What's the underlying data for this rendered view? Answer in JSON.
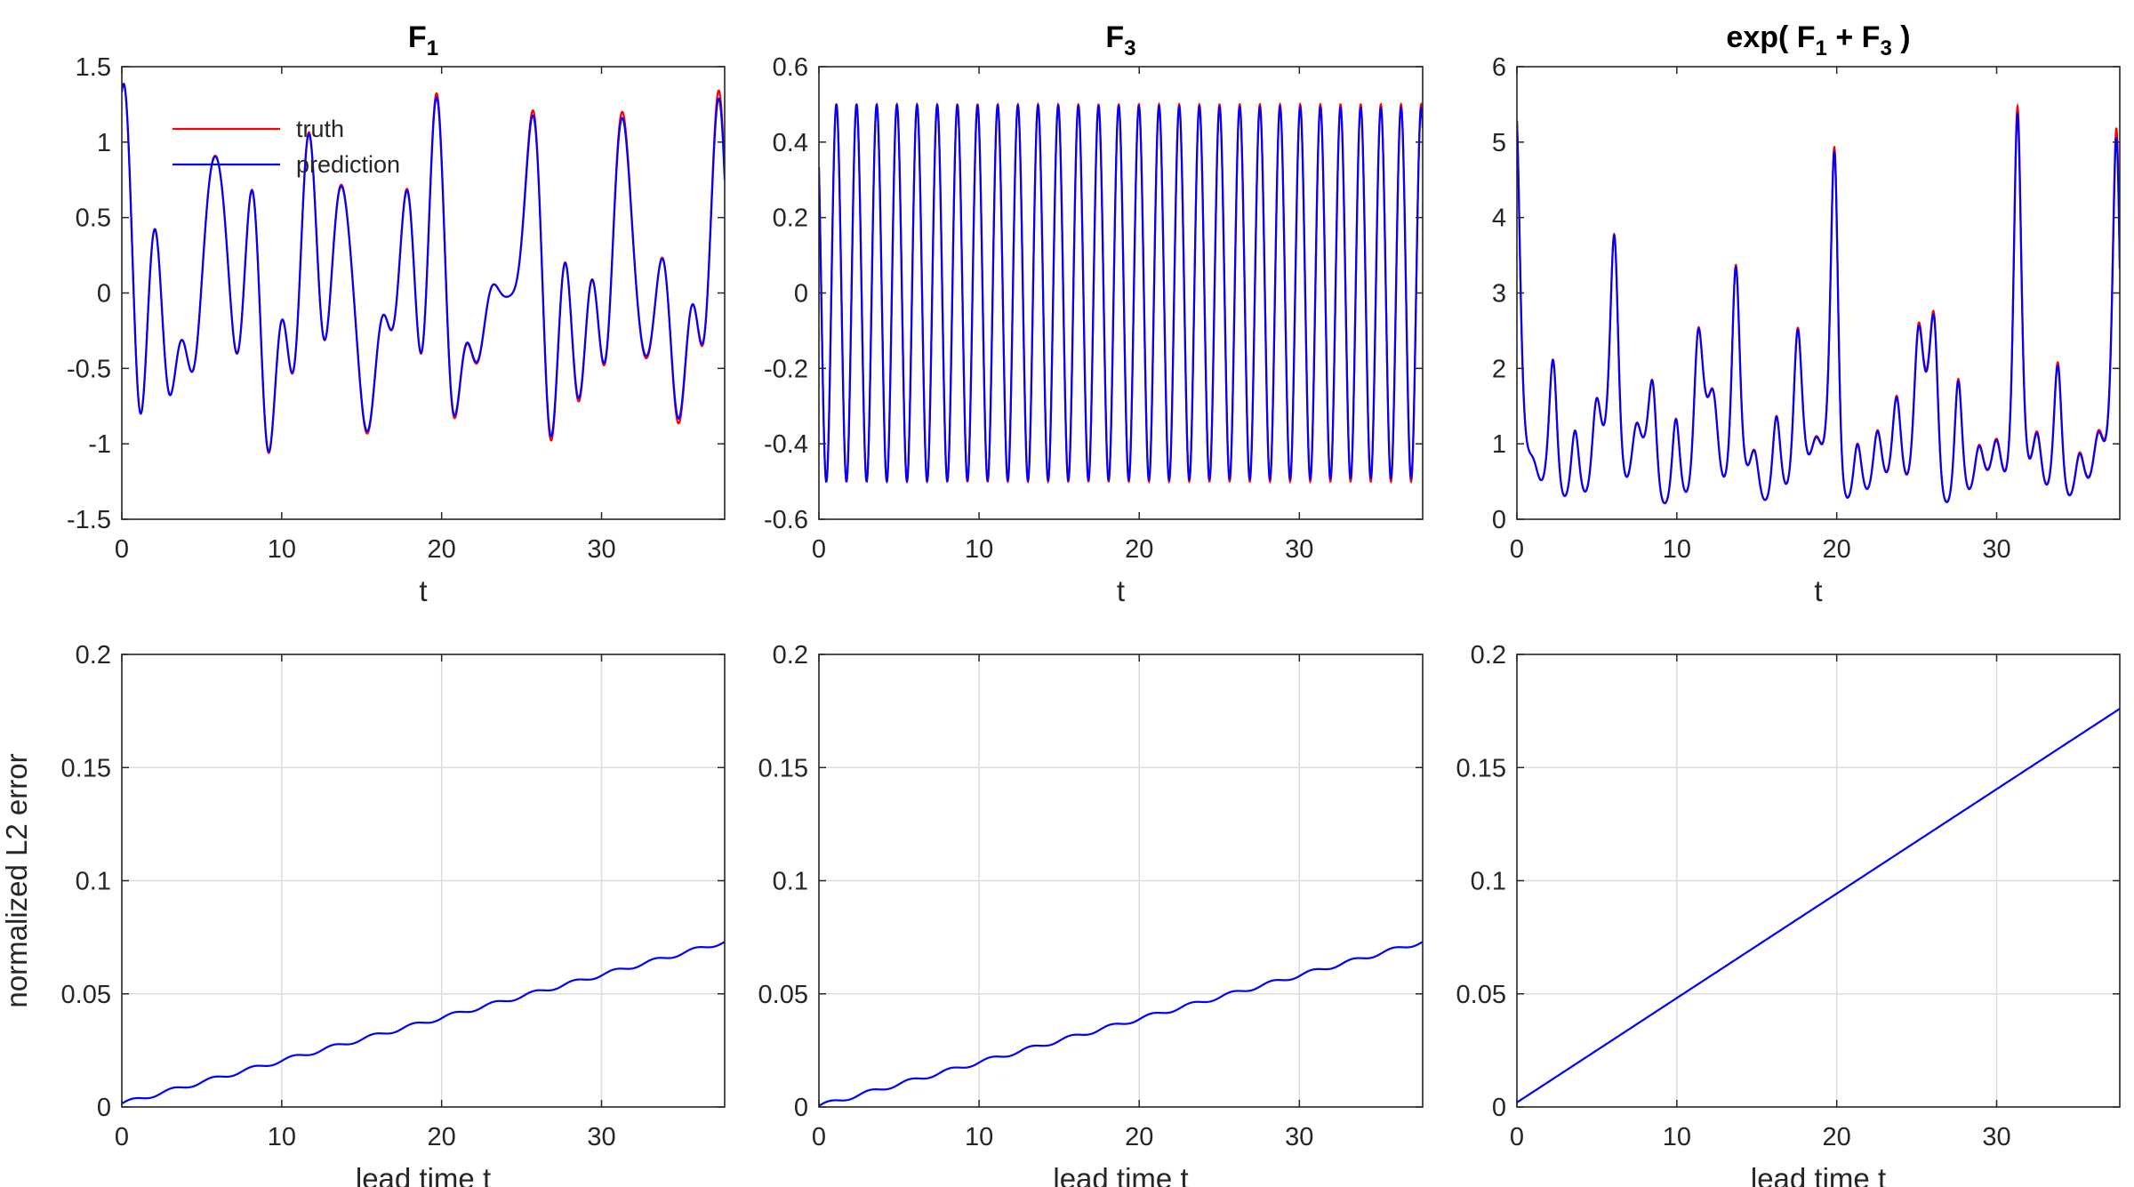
{
  "colors": {
    "truth": "#ff0000",
    "prediction": "#0000ff",
    "grid": "#dcdcdc",
    "axis": "#262626"
  },
  "legend": {
    "location": "top-left of first panel",
    "entries": [
      "truth",
      "prediction"
    ]
  },
  "chart_data": [
    {
      "panel": "F1",
      "type": "line",
      "title": {
        "base": "F",
        "sub": "1",
        "after": ""
      },
      "xlabel": "t",
      "ylabel": "",
      "xlim": [
        0,
        37.7
      ],
      "ylim": [
        -1.5,
        1.5
      ],
      "xticks": [
        0,
        10,
        20,
        30
      ],
      "xtick_labels": [
        "0",
        "10",
        "20",
        "30"
      ],
      "yticks": [
        -1.5,
        -1,
        -0.5,
        0,
        0.5,
        1,
        1.5
      ],
      "ytick_labels": [
        "-1.5",
        "-1",
        "-0.5",
        "0",
        "0.5",
        "1",
        "1.5"
      ],
      "grid": false,
      "series": [
        {
          "name": "truth",
          "color": "#ff0000",
          "kind": "signal",
          "component": "f1",
          "fn": "f1",
          "amp_drift": 0
        },
        {
          "name": "prediction",
          "color": "#0000ff",
          "kind": "signal",
          "component": "f1",
          "fn": "f1",
          "amp_drift": -0.04
        }
      ]
    },
    {
      "panel": "F3",
      "type": "line",
      "title": {
        "base": "F",
        "sub": "3",
        "after": ""
      },
      "xlabel": "t",
      "ylabel": "",
      "xlim": [
        0,
        37.7
      ],
      "ylim": [
        -0.6,
        0.6
      ],
      "xticks": [
        0,
        10,
        20,
        30
      ],
      "xtick_labels": [
        "0",
        "10",
        "20",
        "30"
      ],
      "yticks": [
        -0.6,
        -0.4,
        -0.2,
        0,
        0.2,
        0.4,
        0.6
      ],
      "ytick_labels": [
        "-0.6",
        "-0.4",
        "-0.2",
        "0",
        "0.2",
        "0.4",
        "0.6"
      ],
      "grid": false,
      "series": [
        {
          "name": "truth",
          "color": "#ff0000",
          "kind": "signal",
          "component": "f3",
          "fn": "f3",
          "amp_drift": 0
        },
        {
          "name": "prediction",
          "color": "#0000ff",
          "kind": "signal",
          "component": "f3",
          "fn": "f3",
          "amp_drift": -0.02
        }
      ]
    },
    {
      "panel": "exp(F1 + F3)",
      "type": "line",
      "title": {
        "base": "exp( F",
        "sub": "1",
        "mid": " + F",
        "sub2": "3",
        "after": " )"
      },
      "xlabel": "t",
      "ylabel": "",
      "xlim": [
        0,
        37.7
      ],
      "ylim": [
        0,
        6
      ],
      "xticks": [
        0,
        10,
        20,
        30
      ],
      "xtick_labels": [
        "0",
        "10",
        "20",
        "30"
      ],
      "yticks": [
        0,
        1,
        2,
        3,
        4,
        5,
        6
      ],
      "ytick_labels": [
        "0",
        "1",
        "2",
        "3",
        "4",
        "5",
        "6"
      ],
      "grid": false,
      "series": [
        {
          "name": "truth",
          "color": "#ff0000",
          "kind": "signal",
          "component": "exp",
          "fn": "exp",
          "amp_drift": 0
        },
        {
          "name": "prediction",
          "color": "#0000ff",
          "kind": "signal",
          "component": "exp",
          "fn": "exp",
          "amp_drift": -0.04
        }
      ]
    },
    {
      "panel": "F1 error",
      "type": "line",
      "title": null,
      "xlabel": "lead time t",
      "ylabel": "normalized L2 error",
      "xlim": [
        0,
        37.7
      ],
      "ylim": [
        0,
        0.2
      ],
      "xticks": [
        0,
        10,
        20,
        30
      ],
      "xtick_labels": [
        "0",
        "10",
        "20",
        "30"
      ],
      "yticks": [
        0,
        0.05,
        0.1,
        0.15,
        0.2
      ],
      "ytick_labels": [
        "0",
        "0.05",
        "0.1",
        "0.15",
        "0.2"
      ],
      "grid": true,
      "series": [
        {
          "name": "error",
          "color": "#0000ff",
          "kind": "error",
          "start": 0.0015,
          "end": 0.073,
          "wiggle": 0.0009
        }
      ]
    },
    {
      "panel": "F3 error",
      "type": "line",
      "title": null,
      "xlabel": "lead time t",
      "ylabel": "",
      "xlim": [
        0,
        37.7
      ],
      "ylim": [
        0,
        0.2
      ],
      "xticks": [
        0,
        10,
        20,
        30
      ],
      "xtick_labels": [
        "0",
        "10",
        "20",
        "30"
      ],
      "yticks": [
        0,
        0.05,
        0.1,
        0.15,
        0.2
      ],
      "ytick_labels": [
        "0",
        "0.05",
        "0.1",
        "0.15",
        "0.2"
      ],
      "grid": true,
      "series": [
        {
          "name": "error",
          "color": "#0000ff",
          "kind": "error",
          "start": 0.0005,
          "end": 0.073,
          "wiggle": 0.0009
        }
      ]
    },
    {
      "panel": "exp error",
      "type": "line",
      "title": null,
      "xlabel": "lead time t",
      "ylabel": "",
      "xlim": [
        0,
        37.7
      ],
      "ylim": [
        0,
        0.2
      ],
      "xticks": [
        0,
        10,
        20,
        30
      ],
      "xtick_labels": [
        "0",
        "10",
        "20",
        "30"
      ],
      "yticks": [
        0,
        0.05,
        0.1,
        0.15,
        0.2
      ],
      "ytick_labels": [
        "0",
        "0.05",
        "0.1",
        "0.15",
        "0.2"
      ],
      "grid": true,
      "series": [
        {
          "name": "error",
          "color": "#0000ff",
          "kind": "error",
          "start": 0.002,
          "end": 0.176,
          "wiggle": 0.0
        }
      ]
    }
  ]
}
